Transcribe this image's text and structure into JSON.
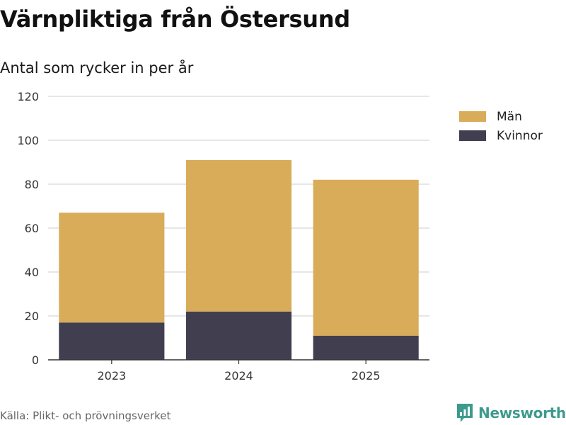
{
  "header": {
    "title": "Värnpliktiga från Östersund",
    "subtitle": "Antal som rycker in per år"
  },
  "footer": {
    "source": "Källa: Plikt- och prövningsverket",
    "brand": "Newsworthy",
    "brand_icon": "newsworthy-logo-icon"
  },
  "chart_data": {
    "type": "bar",
    "stacked": true,
    "title": "Värnpliktiga från Östersund",
    "subtitle": "Antal som rycker in per år",
    "xlabel": "",
    "ylabel": "",
    "categories": [
      "2023",
      "2024",
      "2025"
    ],
    "series": [
      {
        "name": "Kvinnor",
        "values": [
          17,
          22,
          11
        ],
        "color": "#413f4f"
      },
      {
        "name": "Män",
        "values": [
          50,
          69,
          71
        ],
        "color": "#d9ac5a"
      }
    ],
    "legend_order": [
      "Män",
      "Kvinnor"
    ],
    "legend_position": "right",
    "ylim": [
      0,
      120
    ],
    "yticks": [
      0,
      20,
      40,
      60,
      80,
      100,
      120
    ],
    "grid": true
  }
}
